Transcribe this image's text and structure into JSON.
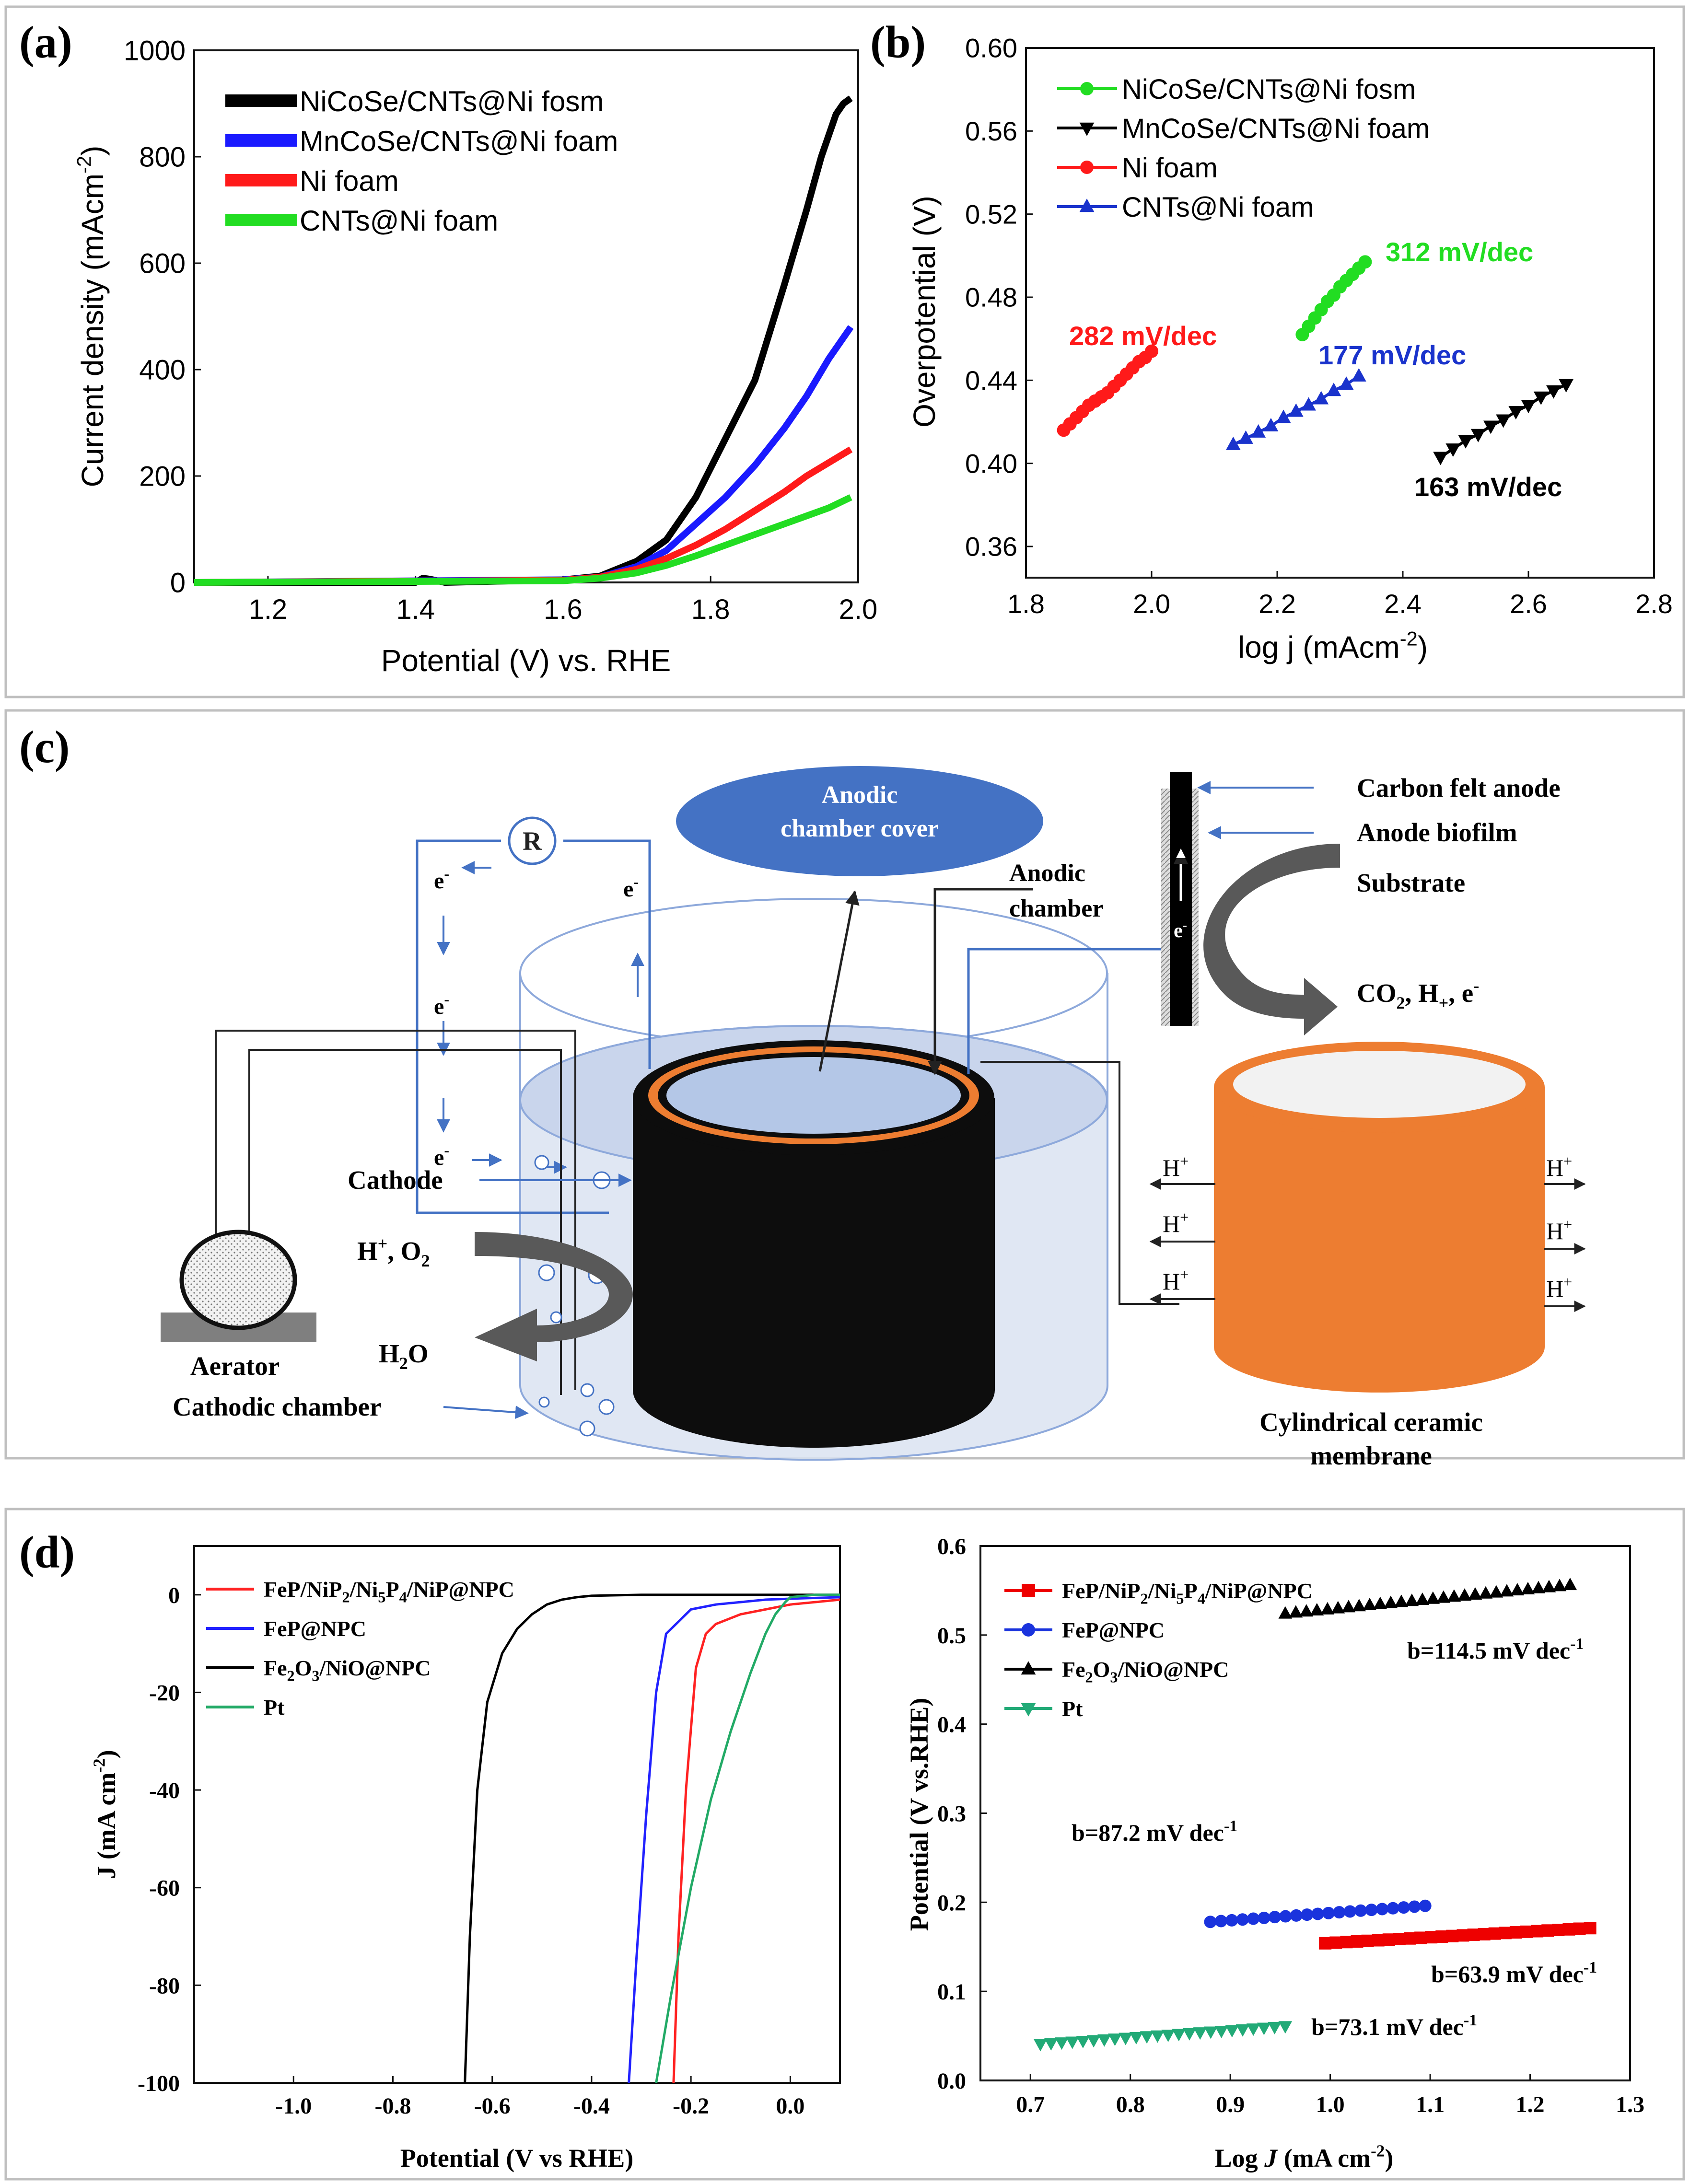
{
  "panels": {
    "a": "(a)",
    "b": "(b)",
    "c": "(c)",
    "d": "(d)"
  },
  "chart_data": [
    {
      "id": "a",
      "type": "line",
      "title": "",
      "xlabel": "Potential (V) vs. RHE",
      "ylabel": "Current density (mAcm-2)",
      "ylabel_main": "Current density (mAcm",
      "ylabel_sup": "-2",
      "ylabel_close": ")",
      "xlim": [
        1.1,
        2.0
      ],
      "ylim": [
        0,
        1000
      ],
      "xticks": [
        1.2,
        1.4,
        1.6,
        1.8,
        2.0
      ],
      "xtick_labels": [
        "1.2",
        "1.4",
        "1.6",
        "1.8",
        "2.0"
      ],
      "yticks": [
        0,
        200,
        400,
        600,
        800,
        1000
      ],
      "ytick_labels": [
        "0",
        "200",
        "400",
        "600",
        "800",
        "1000"
      ],
      "legend_position": "top-left",
      "series": [
        {
          "name": "NiCoSe/CNTs@Ni fosm",
          "color": "#000000",
          "x": [
            1.1,
            1.4,
            1.41,
            1.42,
            1.44,
            1.6,
            1.65,
            1.7,
            1.74,
            1.78,
            1.82,
            1.86,
            1.9,
            1.93,
            1.95,
            1.97,
            1.98,
            1.99
          ],
          "y": [
            0,
            0,
            8,
            6,
            0,
            5,
            12,
            40,
            80,
            160,
            270,
            380,
            560,
            700,
            800,
            880,
            900,
            910
          ]
        },
        {
          "name": "MnCoSe/CNTs@Ni foam",
          "color": "#1a1aff",
          "x": [
            1.1,
            1.6,
            1.65,
            1.7,
            1.74,
            1.78,
            1.82,
            1.86,
            1.9,
            1.93,
            1.96,
            1.98,
            1.99
          ],
          "y": [
            0,
            5,
            10,
            30,
            60,
            110,
            160,
            220,
            290,
            350,
            420,
            460,
            480
          ]
        },
        {
          "name": "Ni foam",
          "color": "#ff1a1a",
          "x": [
            1.1,
            1.6,
            1.65,
            1.7,
            1.74,
            1.78,
            1.82,
            1.86,
            1.9,
            1.93,
            1.96,
            1.99
          ],
          "y": [
            0,
            4,
            10,
            25,
            45,
            70,
            100,
            135,
            170,
            200,
            225,
            250
          ]
        },
        {
          "name": "CNTs@Ni foam",
          "color": "#22dd22",
          "x": [
            1.1,
            1.6,
            1.65,
            1.7,
            1.74,
            1.78,
            1.82,
            1.86,
            1.9,
            1.93,
            1.96,
            1.99
          ],
          "y": [
            0,
            3,
            8,
            18,
            32,
            50,
            70,
            90,
            110,
            125,
            140,
            160
          ]
        }
      ]
    },
    {
      "id": "b",
      "type": "scatter",
      "title": "",
      "xlabel": "log j (mAcm-2)",
      "xlabel_main": "log j (mAcm",
      "xlabel_sup": "-2",
      "xlabel_close": ")",
      "ylabel": "Overpotential (V)",
      "xlim": [
        1.8,
        2.8
      ],
      "ylim": [
        0.345,
        0.6
      ],
      "xticks": [
        1.8,
        2.0,
        2.2,
        2.4,
        2.6,
        2.8
      ],
      "xtick_labels": [
        "1.8",
        "2.0",
        "2.2",
        "2.4",
        "2.6",
        "2.8"
      ],
      "yticks": [
        0.36,
        0.4,
        0.44,
        0.48,
        0.52,
        0.56,
        0.6
      ],
      "ytick_labels": [
        "0.36",
        "0.40",
        "0.44",
        "0.48",
        "0.52",
        "0.56",
        "0.60"
      ],
      "legend_position": "top-left",
      "series": [
        {
          "name": "NiCoSe/CNTs@Ni fosm",
          "color": "#22dd22",
          "marker": "circle",
          "x": [
            2.24,
            2.25,
            2.26,
            2.27,
            2.28,
            2.29,
            2.3,
            2.31,
            2.32,
            2.33,
            2.34
          ],
          "y": [
            0.462,
            0.466,
            0.47,
            0.474,
            0.478,
            0.481,
            0.485,
            0.488,
            0.491,
            0.494,
            0.497
          ]
        },
        {
          "name": "MnCoSe/CNTs@Ni foam",
          "color": "#000000",
          "marker": "triangle-down",
          "x": [
            2.46,
            2.48,
            2.5,
            2.52,
            2.54,
            2.56,
            2.58,
            2.6,
            2.62,
            2.64,
            2.66
          ],
          "y": [
            0.403,
            0.407,
            0.411,
            0.414,
            0.418,
            0.421,
            0.425,
            0.428,
            0.432,
            0.435,
            0.438
          ]
        },
        {
          "name": "Ni foam",
          "color": "#ff1a1a",
          "marker": "circle",
          "x": [
            1.86,
            1.87,
            1.88,
            1.89,
            1.9,
            1.91,
            1.92,
            1.93,
            1.94,
            1.95,
            1.96,
            1.97,
            1.98,
            1.99,
            2.0
          ],
          "y": [
            0.416,
            0.419,
            0.422,
            0.425,
            0.428,
            0.43,
            0.432,
            0.434,
            0.437,
            0.44,
            0.443,
            0.446,
            0.449,
            0.451,
            0.454
          ]
        },
        {
          "name": "CNTs@Ni foam",
          "color": "#1a33cc",
          "marker": "triangle-up",
          "x": [
            2.13,
            2.15,
            2.17,
            2.19,
            2.21,
            2.23,
            2.25,
            2.27,
            2.29,
            2.31,
            2.33
          ],
          "y": [
            0.409,
            0.412,
            0.415,
            0.418,
            0.422,
            0.425,
            0.428,
            0.431,
            0.435,
            0.438,
            0.442
          ]
        }
      ],
      "annotations": [
        {
          "text": "282 mV/dec",
          "color": "#ff1a1a"
        },
        {
          "text": "312 mV/dec",
          "color": "#22dd22"
        },
        {
          "text": "177 mV/dec",
          "color": "#1a33cc"
        },
        {
          "text": "163 mV/dec",
          "color": "#000000"
        }
      ]
    },
    {
      "id": "d1",
      "type": "line",
      "title": "",
      "xlabel": "Potential (V vs RHE)",
      "ylabel": "J (mA cm-2)",
      "ylabel_main": "J (mA cm",
      "ylabel_sup": "-2",
      "ylabel_close": ")",
      "xlim": [
        -1.2,
        0.1
      ],
      "ylim": [
        -100,
        10
      ],
      "xticks": [
        -1.0,
        -0.8,
        -0.6,
        -0.4,
        -0.2,
        0.0
      ],
      "xtick_labels": [
        "-1.0",
        "-0.8",
        "-0.6",
        "-0.4",
        "-0.2",
        "0.0"
      ],
      "yticks": [
        -100,
        -80,
        -60,
        -40,
        -20,
        0
      ],
      "ytick_labels": [
        "-100",
        "-80",
        "-60",
        "-40",
        "-20",
        "0"
      ],
      "legend_position": "top-left",
      "series": [
        {
          "name": "FeP/NiP2/Ni5P4/NiP@NPC",
          "color": "#ff2222",
          "x": [
            -0.235,
            -0.225,
            -0.21,
            -0.19,
            -0.17,
            -0.15,
            -0.1,
            -0.05,
            0.0,
            0.05,
            0.1
          ],
          "y": [
            -100,
            -70,
            -40,
            -15,
            -8,
            -6,
            -4,
            -3,
            -2,
            -1.5,
            -1
          ]
        },
        {
          "name": "FeP@NPC",
          "color": "#2222ff",
          "x": [
            -0.325,
            -0.31,
            -0.29,
            -0.27,
            -0.25,
            -0.2,
            -0.15,
            -0.1,
            -0.05,
            0.0,
            0.1
          ],
          "y": [
            -100,
            -75,
            -45,
            -20,
            -8,
            -3,
            -2,
            -1.5,
            -1,
            -0.8,
            -0.5
          ]
        },
        {
          "name": "Fe2O3/NiO@NPC",
          "color": "#000000",
          "x": [
            -0.655,
            -0.645,
            -0.63,
            -0.61,
            -0.58,
            -0.55,
            -0.52,
            -0.49,
            -0.46,
            -0.43,
            -0.4,
            -0.3,
            0.1
          ],
          "y": [
            -100,
            -70,
            -40,
            -22,
            -12,
            -7,
            -4,
            -2,
            -1,
            -0.5,
            -0.2,
            0,
            0
          ]
        },
        {
          "name": "Pt",
          "color": "#22aa66",
          "x": [
            -0.27,
            -0.24,
            -0.2,
            -0.16,
            -0.12,
            -0.08,
            -0.05,
            -0.03,
            -0.01,
            0.0,
            0.05,
            0.1
          ],
          "y": [
            -100,
            -82,
            -60,
            -42,
            -28,
            -16,
            -8,
            -4,
            -1.5,
            -0.5,
            0,
            0
          ]
        }
      ]
    },
    {
      "id": "d2",
      "type": "scatter",
      "title": "",
      "xlabel": "Log J (mA cm-2)",
      "xlabel_pre": "Log ",
      "xlabel_italic": "J",
      "xlabel_main": " (mA cm",
      "xlabel_sup": "-2",
      "xlabel_close": ")",
      "ylabel": "Potential (V vs.RHE)",
      "xlim": [
        0.65,
        1.3
      ],
      "ylim": [
        0.0,
        0.6
      ],
      "xticks": [
        0.7,
        0.8,
        0.9,
        1.0,
        1.1,
        1.2,
        1.3
      ],
      "xtick_labels": [
        "0.7",
        "0.8",
        "0.9",
        "1.0",
        "1.1",
        "1.2",
        "1.3"
      ],
      "yticks": [
        0.0,
        0.1,
        0.2,
        0.3,
        0.4,
        0.5,
        0.6
      ],
      "ytick_labels": [
        "0.0",
        "0.1",
        "0.2",
        "0.3",
        "0.4",
        "0.5",
        "0.6"
      ],
      "legend_position": "top-left",
      "series": [
        {
          "name": "FeP/NiP2/Ni5P4/NiP@NPC",
          "color": "#ee0000",
          "marker": "square",
          "x_start": 0.995,
          "x_end": 1.26,
          "y_start": 0.154,
          "y_end": 0.171,
          "n": 26
        },
        {
          "name": "FeP@NPC",
          "color": "#1a33dd",
          "marker": "circle",
          "x_start": 0.88,
          "x_end": 1.095,
          "y_start": 0.178,
          "y_end": 0.196,
          "n": 21
        },
        {
          "name": "Fe2O3/NiO@NPC",
          "color": "#000000",
          "marker": "triangle-up",
          "x_start": 0.955,
          "x_end": 1.24,
          "y_start": 0.524,
          "y_end": 0.556,
          "n": 28
        },
        {
          "name": "Pt",
          "color": "#22aa77",
          "marker": "triangle-down",
          "x_start": 0.71,
          "x_end": 0.955,
          "y_start": 0.041,
          "y_end": 0.061,
          "n": 24
        }
      ],
      "annotations": [
        {
          "text": "b=114.5 mV dec",
          "sup": "-1"
        },
        {
          "text": "b=87.2 mV dec",
          "sup": "-1"
        },
        {
          "text": "b=63.9 mV dec",
          "sup": "-1"
        },
        {
          "text": "b=73.1 mV dec",
          "sup": "-1"
        }
      ]
    }
  ],
  "legend_d": [
    {
      "parts": [
        [
          "FeP/NiP",
          "n"
        ],
        [
          "2",
          "sub"
        ],
        [
          "/Ni",
          "n"
        ],
        [
          "5",
          "sub"
        ],
        [
          "P",
          "n"
        ],
        [
          "4",
          "sub"
        ],
        [
          "/NiP@NPC",
          "n"
        ]
      ]
    },
    {
      "parts": [
        [
          "FeP@NPC",
          "n"
        ]
      ]
    },
    {
      "parts": [
        [
          "Fe",
          "n"
        ],
        [
          "2",
          "sub"
        ],
        [
          "O",
          "n"
        ],
        [
          "3",
          "sub"
        ],
        [
          "/NiO@NPC",
          "n"
        ]
      ]
    },
    {
      "parts": [
        [
          "Pt",
          "n"
        ]
      ]
    }
  ],
  "diagram_c": {
    "cover_label_1": "Anodic",
    "cover_label_2": "chamber cover",
    "resistor": "R",
    "electron": "e",
    "electron_sup": "-",
    "anodic_chamber_1": "Anodic",
    "anodic_chamber_2": "chamber",
    "carbon_felt_anode": "Carbon felt anode",
    "anode_biofilm": "Anode biofilm",
    "substrate": "Substrate",
    "products_main": "CO",
    "products_sub": "2",
    "products_rest": ", H",
    "products_sub2": "+",
    "products_end": ", e",
    "products_sup": "-",
    "cathode": "Cathode",
    "h_o2_a": "H",
    "h_o2_sup": "+",
    "h_o2_b": ", O",
    "h_o2_sub": "2",
    "h2o_a": "H",
    "h2o_sub": "2",
    "h2o_b": "O",
    "aerator": "Aerator",
    "cathodic_chamber": "Cathodic chamber",
    "proton": "H",
    "proton_sup": "+",
    "membrane_1": "Cylindrical ceramic",
    "membrane_2": "membrane",
    "colors": {
      "cover": "#4472c4",
      "membrane": "#ed7d31",
      "water": "#dbe3f1",
      "wire": "#4472c4",
      "arrow": "#595959"
    }
  }
}
